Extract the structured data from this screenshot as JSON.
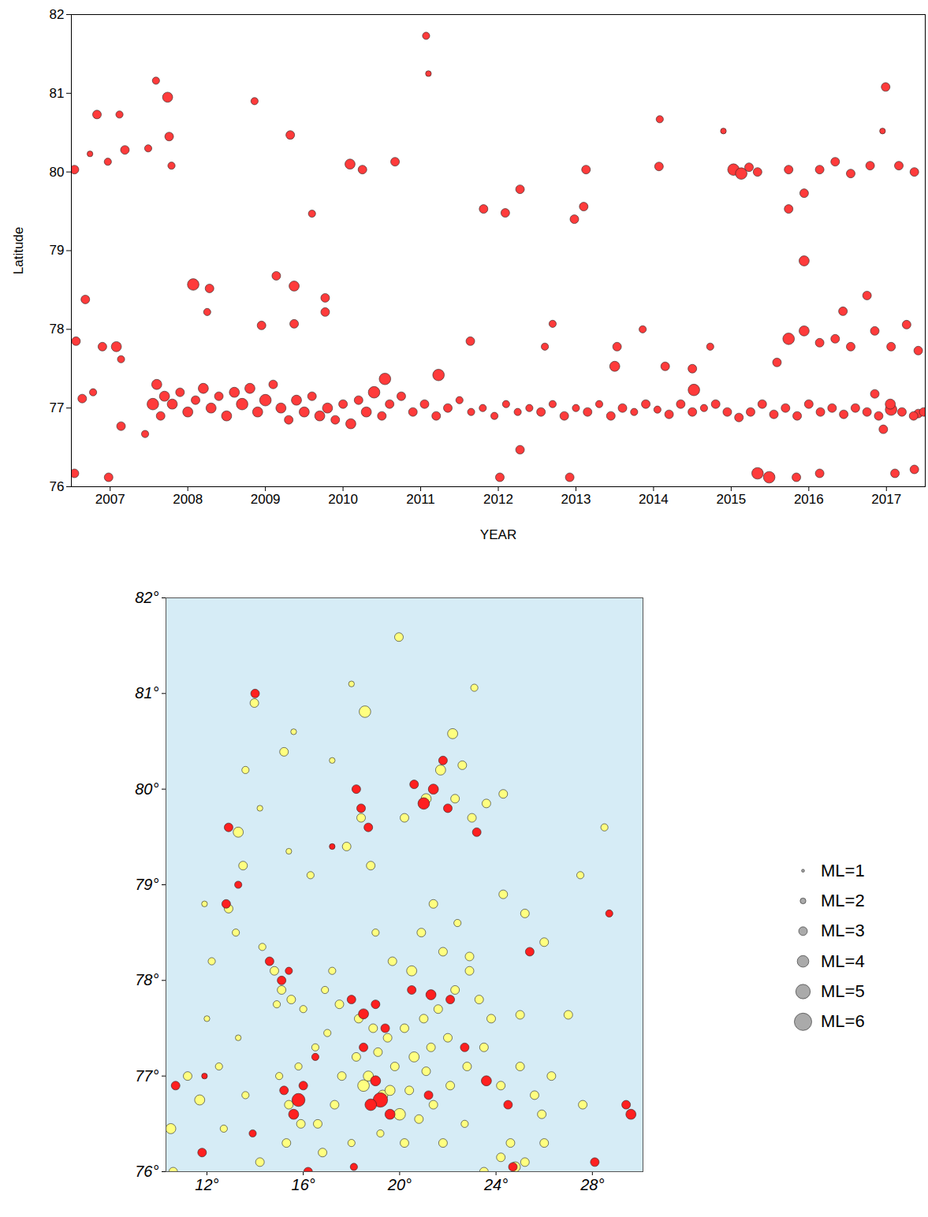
{
  "chart_data": [
    {
      "type": "scatter",
      "xlabel": "YEAR",
      "ylabel": "Latitude",
      "xlim": [
        2007,
        2018
      ],
      "ylim": [
        76,
        82
      ],
      "xticks": [
        {
          "value": 2007.5,
          "label": "2007"
        },
        {
          "value": 2008.5,
          "label": "2008"
        },
        {
          "value": 2009.5,
          "label": "2009"
        },
        {
          "value": 2010.5,
          "label": "2010"
        },
        {
          "value": 2011.5,
          "label": "2011"
        },
        {
          "value": 2012.5,
          "label": "2012"
        },
        {
          "value": 2013.5,
          "label": "2013"
        },
        {
          "value": 2014.5,
          "label": "2014"
        },
        {
          "value": 2015.5,
          "label": "2015"
        },
        {
          "value": 2016.5,
          "label": "2016"
        },
        {
          "value": 2017.5,
          "label": "2017"
        }
      ],
      "yticks": [
        76,
        77,
        78,
        79,
        80,
        81,
        82
      ],
      "color": "#ff3b3b",
      "x": [
        2007.04,
        2007.24,
        2007.33,
        2007.18,
        2007.06,
        2007.4,
        2007.58,
        2007.64,
        2007.62,
        2007.47,
        2007.69,
        2007.99,
        2008.09,
        2008.24,
        2008.26,
        2008.29,
        2007.14,
        2007.28,
        2007.04,
        2007.48,
        2007.64,
        2007.95,
        2008.57,
        2008.78,
        2008.75,
        2009.36,
        2009.82,
        2009.64,
        2009.87,
        2009.87,
        2010.27,
        2010.27,
        2010.1,
        2010.75,
        2010.59,
        2011.17,
        2011.57,
        2011.6,
        2012.31,
        2012.59,
        2012.78,
        2013.48,
        2013.6,
        2013.63,
        2014.57,
        2014.58,
        2015.4,
        2015.53,
        2015.63,
        2015.73,
        2015.84,
        2016.24,
        2016.64,
        2016.84,
        2017.04,
        2017.29,
        2017.49,
        2017.66,
        2017.86,
        2017.45,
        2016.44,
        2016.24,
        2016.24,
        2016.44,
        2016.64,
        2016.84,
        2017.04,
        2016.44,
        2015.84,
        2015.99,
        2016.34,
        2016.64,
        2017.61,
        2017.86,
        2013.42,
        2012.52,
        2012.78,
        2011.73,
        2011.04,
        2012.14,
        2013.2,
        2013.1,
        2014.03,
        2014.0,
        2014.36,
        2014.65,
        2015.0,
        2015.02,
        2015.23,
        2016.09,
        2016.94,
        2017.25,
        2017.35,
        2017.56,
        2017.76,
        2017.91,
        2017.35,
        2017.56,
        2017.91,
        2017.46,
        2008.05,
        2008.1,
        2008.15,
        2008.2,
        2008.3,
        2008.4,
        2008.5,
        2008.6,
        2008.7,
        2008.8,
        2008.9,
        2009.0,
        2009.1,
        2009.2,
        2009.3,
        2009.4,
        2009.5,
        2009.6,
        2009.7,
        2009.8,
        2009.9,
        2010.0,
        2010.1,
        2010.2,
        2010.3,
        2010.4,
        2010.5,
        2010.6,
        2010.7,
        2010.8,
        2010.9,
        2011.0,
        2011.1,
        2011.25,
        2011.4,
        2011.55,
        2011.7,
        2011.85,
        2012.0,
        2012.15,
        2012.3,
        2012.45,
        2012.6,
        2012.75,
        2012.9,
        2013.05,
        2013.2,
        2013.35,
        2013.5,
        2013.65,
        2013.8,
        2013.95,
        2014.1,
        2014.25,
        2014.4,
        2014.55,
        2014.7,
        2014.85,
        2015.0,
        2015.15,
        2015.3,
        2015.45,
        2015.6,
        2015.75,
        2015.9,
        2016.05,
        2016.2,
        2016.35,
        2016.5,
        2016.65,
        2016.8,
        2016.95,
        2017.1,
        2017.25,
        2017.4,
        2017.55,
        2017.7,
        2017.85,
        2017.98,
        2009.45
      ],
      "values": [
        80.03,
        80.23,
        80.73,
        78.38,
        77.85,
        77.78,
        77.78,
        77.62,
        80.73,
        80.13,
        80.28,
        80.3,
        81.16,
        80.95,
        80.45,
        80.08,
        77.12,
        77.2,
        76.17,
        76.12,
        76.77,
        76.67,
        78.57,
        78.52,
        78.22,
        80.9,
        80.47,
        78.68,
        78.55,
        78.07,
        78.4,
        78.22,
        79.47,
        80.03,
        80.1,
        80.13,
        81.73,
        81.25,
        79.53,
        79.48,
        79.78,
        79.4,
        79.56,
        80.03,
        80.07,
        80.67,
        80.52,
        80.03,
        79.98,
        80.06,
        80.0,
        80.03,
        80.03,
        80.13,
        79.98,
        80.08,
        81.08,
        80.08,
        80.0,
        80.52,
        79.73,
        79.53,
        77.88,
        77.98,
        77.83,
        77.88,
        77.78,
        78.87,
        76.17,
        76.12,
        76.12,
        76.17,
        76.17,
        76.22,
        76.12,
        76.12,
        76.47,
        77.42,
        77.37,
        77.85,
        78.07,
        77.78,
        77.78,
        77.53,
        78.0,
        77.53,
        77.5,
        77.23,
        77.78,
        77.58,
        78.23,
        78.43,
        77.98,
        77.78,
        78.06,
        77.73,
        77.18,
        76.98,
        76.93,
        76.73,
        77.05,
        77.3,
        76.9,
        77.15,
        77.05,
        77.2,
        76.95,
        77.1,
        77.25,
        77.0,
        77.15,
        76.9,
        77.2,
        77.05,
        77.25,
        76.95,
        77.1,
        77.3,
        77.0,
        76.85,
        77.1,
        76.95,
        77.15,
        76.9,
        77.0,
        76.85,
        77.05,
        76.8,
        77.1,
        76.95,
        77.2,
        76.9,
        77.05,
        77.15,
        76.95,
        77.05,
        76.9,
        77.0,
        77.1,
        76.95,
        77.0,
        76.9,
        77.05,
        76.95,
        77.0,
        76.95,
        77.05,
        76.9,
        77.0,
        76.95,
        77.05,
        76.9,
        77.0,
        76.95,
        77.05,
        76.98,
        76.92,
        77.05,
        76.95,
        77.0,
        77.05,
        76.95,
        76.88,
        76.95,
        77.05,
        76.92,
        77.0,
        76.9,
        77.05,
        76.95,
        77.0,
        76.92,
        77.0,
        76.95,
        76.9,
        77.05,
        76.95,
        76.9,
        76.95,
        78.05
      ],
      "sizes": [
        3,
        2,
        3,
        3,
        3,
        3,
        3.5,
        2.5,
        2.5,
        2.5,
        3,
        2.5,
        2.5,
        3.5,
        3,
        2.5,
        3,
        2.5,
        3,
        3,
        3,
        2.5,
        4,
        3,
        2.5,
        2.5,
        3,
        3,
        3.5,
        3,
        3,
        3,
        2.5,
        3,
        3.5,
        3,
        2.5,
        2,
        3,
        3,
        3,
        3,
        3,
        3,
        3,
        2.5,
        2,
        4,
        4,
        3,
        3,
        3,
        3,
        3,
        3,
        3,
        3,
        3,
        3,
        2,
        3,
        3,
        4,
        3.5,
        3,
        3,
        3,
        3.5,
        4,
        4,
        3,
        3,
        3,
        3,
        3,
        3,
        3,
        4,
        4,
        3,
        2.5,
        2.5,
        3,
        3.5,
        2.5,
        3,
        3,
        4,
        2.5,
        3,
        3,
        3,
        3,
        3,
        3,
        3,
        3,
        4,
        3,
        3,
        4,
        3.5,
        3,
        3.5,
        3.5,
        3,
        3.5,
        3,
        3.5,
        3.5,
        3,
        3.5,
        3.5,
        4,
        3.5,
        3.5,
        4,
        3,
        3.5,
        3,
        3.5,
        3.5,
        3,
        3.5,
        3.5,
        3,
        3,
        3.5,
        3,
        3.5,
        4,
        3,
        3,
        3,
        3,
        3,
        3,
        3,
        2.5,
        2.5,
        2.5,
        2.5,
        2.5,
        2.5,
        2.5,
        3,
        2.5,
        3,
        2.5,
        3,
        2.5,
        3,
        3,
        2.5,
        3,
        2.5,
        3,
        3,
        3,
        2.5,
        3,
        3,
        3,
        3,
        3,
        3,
        3,
        3,
        3,
        3,
        3,
        3,
        3,
        3,
        3,
        3.5,
        3,
        3,
        3,
        3
      ]
    },
    {
      "type": "scatter",
      "xlim": [
        10.3,
        30.1
      ],
      "ylim": [
        76,
        82
      ],
      "xticks": [
        {
          "value": 12,
          "label": "12°"
        },
        {
          "value": 16,
          "label": "16°"
        },
        {
          "value": 20,
          "label": "20°"
        },
        {
          "value": 24,
          "label": "24°"
        },
        {
          "value": 28,
          "label": "28°"
        }
      ],
      "yticks": [
        {
          "value": 76,
          "label": "76°"
        },
        {
          "value": 77,
          "label": "77°"
        },
        {
          "value": 78,
          "label": "78°"
        },
        {
          "value": 79,
          "label": "79°"
        },
        {
          "value": 80,
          "label": "80°"
        },
        {
          "value": 81,
          "label": "81°"
        },
        {
          "value": 82,
          "label": "82°"
        }
      ],
      "legend": "right",
      "size_legend": [
        {
          "value": 1,
          "label": "ML=1"
        },
        {
          "value": 2,
          "label": "ML=2"
        },
        {
          "value": 3,
          "label": "ML=3"
        },
        {
          "value": 4,
          "label": "ML=4"
        },
        {
          "value": 5,
          "label": "ML=5"
        },
        {
          "value": 6,
          "label": "ML=6"
        }
      ],
      "series": [
        {
          "color": "#ffff80",
          "x": [
            19.97,
            18.56,
            13.97,
            15.2,
            22.2,
            23.1,
            18.0,
            15.6,
            17.2,
            13.6,
            14.2,
            13.3,
            13.5,
            12.9,
            13.2,
            14.3,
            14.8,
            15.1,
            15.5,
            14.9,
            16.0,
            16.9,
            17.5,
            18.3,
            18.9,
            19.5,
            20.2,
            21.0,
            21.6,
            22.3,
            22.9,
            21.8,
            20.9,
            21.4,
            22.4,
            22.9,
            23.3,
            23.8,
            23.5,
            22.8,
            22.1,
            21.4,
            20.8,
            20.0,
            19.3,
            18.7,
            18.2,
            17.6,
            17.3,
            16.6,
            15.9,
            15.4,
            15.0,
            15.8,
            16.5,
            19.8,
            20.6,
            21.3,
            22.0,
            24.2,
            25.0,
            25.6,
            26.3,
            27.0,
            25.0,
            25.9,
            24.6,
            23.5,
            24.2,
            25.2,
            26.0,
            27.6,
            24.8,
            22.7,
            21.8,
            20.2,
            19.2,
            18.0,
            16.8,
            15.3,
            14.2,
            10.6,
            10.5,
            11.7,
            11.2,
            12.5,
            13.3,
            12.0,
            12.2,
            11.9,
            18.4,
            17.8,
            18.8,
            20.2,
            21.1,
            22.3,
            23.0,
            23.6,
            24.3,
            21.7,
            22.6,
            24.3,
            25.2,
            27.5,
            28.5,
            26.0,
            20.5,
            19.7,
            19.0,
            17.2,
            17.0,
            19.1,
            18.5,
            19.6,
            20.4,
            21.1,
            13.6,
            12.7,
            16.3,
            15.4
          ],
          "values": [
            81.59,
            80.81,
            80.9,
            80.39,
            80.58,
            81.06,
            81.1,
            80.6,
            80.3,
            80.2,
            79.8,
            79.55,
            79.2,
            78.75,
            78.5,
            78.35,
            78.1,
            77.9,
            77.8,
            77.75,
            77.7,
            77.9,
            77.75,
            77.6,
            77.5,
            77.4,
            77.5,
            77.6,
            77.7,
            77.9,
            78.1,
            78.3,
            78.5,
            78.8,
            78.6,
            78.25,
            77.8,
            77.6,
            77.3,
            77.1,
            76.9,
            76.7,
            76.55,
            76.6,
            76.8,
            77.0,
            77.2,
            77.0,
            76.7,
            76.5,
            76.5,
            76.7,
            77.0,
            77.1,
            77.3,
            77.1,
            77.2,
            77.3,
            77.4,
            76.9,
            77.1,
            76.8,
            77.0,
            77.64,
            77.64,
            76.6,
            76.3,
            76.0,
            76.15,
            76.1,
            76.3,
            76.7,
            76.05,
            76.5,
            76.3,
            76.3,
            76.4,
            76.3,
            76.2,
            76.3,
            76.1,
            76.0,
            76.45,
            76.75,
            77.0,
            77.1,
            77.4,
            77.6,
            78.2,
            78.8,
            79.7,
            79.4,
            79.2,
            79.7,
            79.9,
            79.9,
            79.7,
            79.85,
            79.95,
            80.2,
            80.25,
            78.9,
            78.7,
            79.1,
            79.6,
            78.4,
            78.1,
            78.2,
            78.5,
            78.1,
            77.45,
            77.25,
            76.9,
            76.85,
            76.85,
            77.05,
            76.8,
            76.45,
            79.1,
            79.35
          ],
          "sizes": [
            3,
            4,
            3,
            3,
            3.5,
            2.5,
            2,
            2,
            2,
            2.5,
            2,
            3.5,
            3,
            3,
            2.5,
            2.5,
            3,
            3,
            3,
            2.5,
            2.5,
            2.5,
            3,
            3,
            3,
            3,
            3,
            3,
            3,
            3,
            3,
            3,
            3,
            3,
            2.5,
            3,
            3,
            3,
            3,
            3,
            3,
            3,
            3,
            4,
            3.5,
            3.5,
            3,
            3,
            3,
            3,
            3,
            3,
            2.5,
            2.5,
            2.5,
            3,
            3.5,
            3,
            3,
            3,
            3,
            3,
            3,
            3,
            3,
            3,
            3,
            3,
            3,
            3,
            3,
            3,
            3.5,
            2.5,
            3,
            3,
            2.5,
            2.5,
            3,
            3,
            3,
            3,
            3.5,
            3.5,
            3,
            2.5,
            2,
            2,
            2.5,
            2,
            3,
            3,
            3,
            3,
            3.5,
            3,
            3,
            3,
            3,
            3.5,
            3,
            3,
            3,
            2.5,
            2.5,
            3,
            3.5,
            3,
            2.5,
            2.5,
            2.5,
            3,
            4,
            3.5,
            3,
            3,
            2.5,
            2.5,
            2.5,
            2
          ]
        },
        {
          "color": "#ff2020",
          "x": [
            14.0,
            25.4,
            28.7,
            29.6,
            29.4,
            28.1,
            24.7,
            16.2,
            18.1,
            11.8,
            10.7,
            11.9,
            15.8,
            15.6,
            16.0,
            15.2,
            19.2,
            18.8,
            19.6,
            19.0,
            18.5,
            19.4,
            18.5,
            18.0,
            19.0,
            20.5,
            21.3,
            22.1,
            22.7,
            23.6,
            24.5,
            21.2,
            15.1,
            14.6,
            15.4,
            12.8,
            13.3,
            12.9,
            18.4,
            18.7,
            18.2,
            21.0,
            21.4,
            20.6,
            22.0,
            21.8,
            23.2,
            17.2,
            16.5,
            13.9
          ],
          "values": [
            81.0,
            78.3,
            78.7,
            76.6,
            76.7,
            76.1,
            76.05,
            76.0,
            76.05,
            76.2,
            76.9,
            77.0,
            76.75,
            76.6,
            76.9,
            76.85,
            76.75,
            76.7,
            76.6,
            76.95,
            77.3,
            77.5,
            77.65,
            77.8,
            77.75,
            77.9,
            77.85,
            77.8,
            77.3,
            76.95,
            76.7,
            76.8,
            78.0,
            78.2,
            78.1,
            78.8,
            79.0,
            79.6,
            79.8,
            79.6,
            80.0,
            79.85,
            80.0,
            80.05,
            79.8,
            80.3,
            79.55,
            79.4,
            77.2,
            76.4
          ],
          "sizes": [
            3,
            3,
            2.5,
            3.5,
            3,
            3,
            3,
            3,
            2.5,
            3,
            3,
            2,
            4.5,
            3.5,
            3,
            3,
            5,
            4,
            3.5,
            3.5,
            3,
            3,
            3.5,
            3,
            3,
            3,
            3.5,
            3,
            3,
            3.5,
            3,
            3,
            3,
            3,
            2.5,
            3,
            2.5,
            3,
            3,
            3,
            3,
            4,
            3.5,
            3,
            3,
            3,
            3,
            2,
            2.5,
            2.5
          ]
        }
      ]
    }
  ]
}
